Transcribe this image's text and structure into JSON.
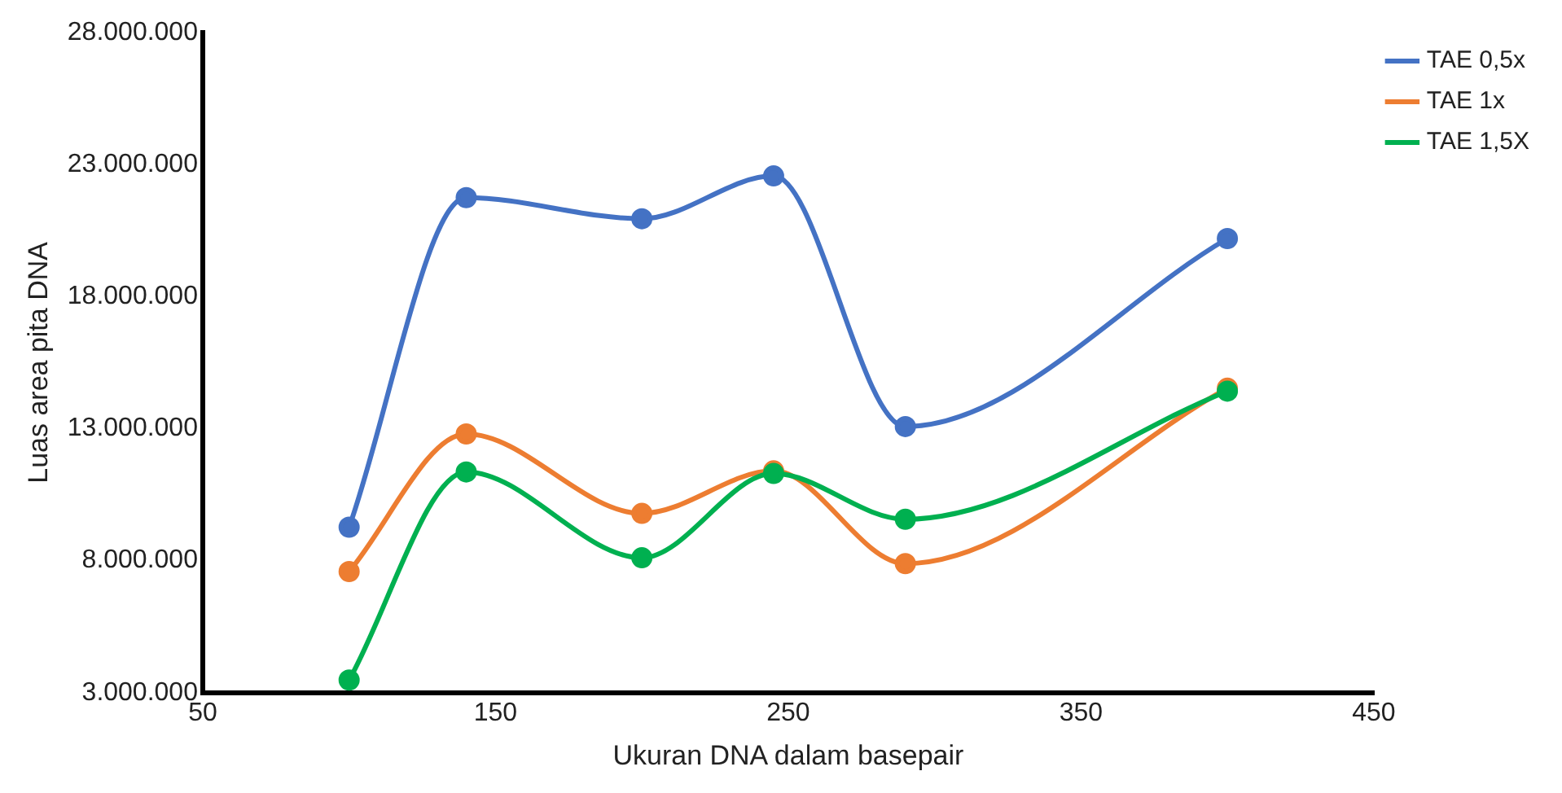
{
  "chart_data": {
    "type": "line",
    "xlabel": "Ukuran DNA dalam basepair",
    "ylabel": "Luas area pita DNA",
    "x": [
      100,
      140,
      200,
      245,
      290,
      400
    ],
    "series": [
      {
        "name": "TAE 0,5x",
        "color": "#4472c4",
        "values": [
          9270000,
          21750000,
          20950000,
          22570000,
          13080000,
          20200000
        ]
      },
      {
        "name": "TAE 1x",
        "color": "#ed7d31",
        "values": [
          7590000,
          12800000,
          9790000,
          11400000,
          7890000,
          14530000
        ]
      },
      {
        "name": "TAE 1,5X",
        "color": "#00b050",
        "values": [
          3480000,
          11360000,
          8110000,
          11300000,
          9570000,
          14420000
        ]
      }
    ],
    "xlim": [
      50,
      450
    ],
    "xticks": [
      50,
      150,
      250,
      350,
      450
    ],
    "ylim": [
      3000000,
      28000000
    ],
    "yticks": [
      {
        "value": 3000000,
        "label": "3.000.000"
      },
      {
        "value": 8000000,
        "label": "8.000.000"
      },
      {
        "value": 13000000,
        "label": "13.000.000"
      },
      {
        "value": 18000000,
        "label": "18.000.000"
      },
      {
        "value": 23000000,
        "label": "23.000.000"
      },
      {
        "value": 28000000,
        "label": "28.000.000"
      }
    ],
    "grid": false,
    "legend": "top right",
    "marker": "circle",
    "line_style": "solid"
  }
}
